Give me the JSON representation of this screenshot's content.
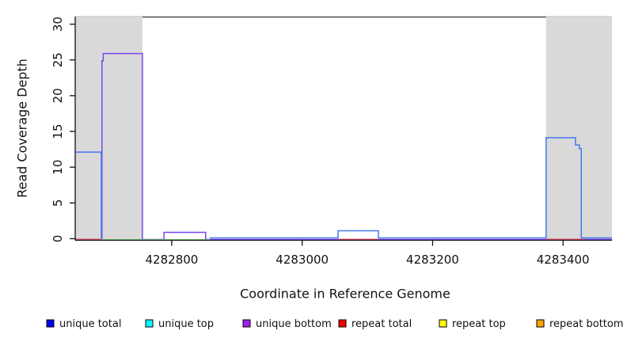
{
  "figure": {
    "xlabel": "Coordinate in Reference Genome",
    "ylabel": "Read Coverage Depth"
  },
  "chart_data": {
    "type": "line",
    "title": "",
    "xlabel": "Coordinate in Reference Genome",
    "ylabel": "Read Coverage Depth",
    "xlim": [
      4282652,
      4283475
    ],
    "ylim": [
      0,
      31
    ],
    "xticks": [
      4282800,
      4283000,
      4283200,
      4283400
    ],
    "yticks": [
      0,
      5,
      10,
      15,
      20,
      25,
      30
    ],
    "grid": false,
    "legend_position": "bottom",
    "mask_color": "#d9d9d9",
    "mask_regions": [
      [
        4282652,
        4282755
      ],
      [
        4283374,
        4283475
      ]
    ],
    "top_line": {
      "value": 31,
      "color": "#4d4d4d"
    },
    "series": [
      {
        "name": "unique bottom",
        "legend_color": "#a020f0",
        "render_color": "#7744ee",
        "dy": 1.0,
        "segments": [
          [
            [
              4282652,
              0
            ],
            [
              4282693,
              0
            ],
            [
              4282693,
              25
            ],
            [
              4282695,
              25
            ],
            [
              4282695,
              26
            ],
            [
              4282755,
              26
            ],
            [
              4282755,
              0
            ],
            [
              4282788,
              0
            ],
            [
              4282788,
              1
            ],
            [
              4282852,
              1
            ],
            [
              4282852,
              0
            ],
            [
              4283475,
              0
            ]
          ]
        ]
      },
      {
        "name": "repeat total",
        "legend_color": "#ff0000",
        "render_color": "#e04458",
        "dy": 1.0,
        "segments": [
          [
            [
              4282652,
              0
            ],
            [
              4282692,
              0
            ]
          ],
          [
            [
              4283055,
              0
            ],
            [
              4283117,
              0
            ]
          ],
          [
            [
              4283374,
              0
            ],
            [
              4283433,
              0
            ]
          ]
        ]
      },
      {
        "name": "repeat top",
        "legend_color": "#ffff00",
        "render_color": "#79c97f",
        "dy": 1.4,
        "segments": [
          [
            [
              4282692,
              0
            ],
            [
              4282858,
              0
            ]
          ]
        ]
      },
      {
        "name": "unique top",
        "legend_color": "#00ffff",
        "render_color": "#79c97f",
        "dy": 1.4,
        "segments": [
          [
            [
              4282692,
              0
            ],
            [
              4282858,
              0
            ]
          ]
        ]
      },
      {
        "name": "unique total",
        "legend_color": "#0000ff",
        "render_color": "#4478f0",
        "dy": -1.0,
        "segments": [
          [
            [
              4282652,
              12
            ],
            [
              4282692,
              12
            ],
            [
              4282692,
              0
            ]
          ],
          [
            [
              4282858,
              0
            ],
            [
              4283055,
              0
            ],
            [
              4283055,
              1
            ],
            [
              4283117,
              1
            ],
            [
              4283117,
              0
            ],
            [
              4283374,
              0
            ],
            [
              4283374,
              14
            ],
            [
              4283419,
              14
            ],
            [
              4283419,
              13
            ],
            [
              4283425,
              13
            ],
            [
              4283425,
              12.5
            ],
            [
              4283428,
              12.5
            ],
            [
              4283428,
              0
            ],
            [
              4283475,
              0
            ]
          ]
        ]
      }
    ],
    "legend": [
      {
        "label": "unique total",
        "color": "#0000ff"
      },
      {
        "label": "unique top",
        "color": "#00ffff"
      },
      {
        "label": "unique bottom",
        "color": "#a020f0"
      },
      {
        "label": "repeat total",
        "color": "#ff0000"
      },
      {
        "label": "repeat top",
        "color": "#ffff00"
      },
      {
        "label": "repeat bottom",
        "color": "#ffa500"
      }
    ]
  }
}
